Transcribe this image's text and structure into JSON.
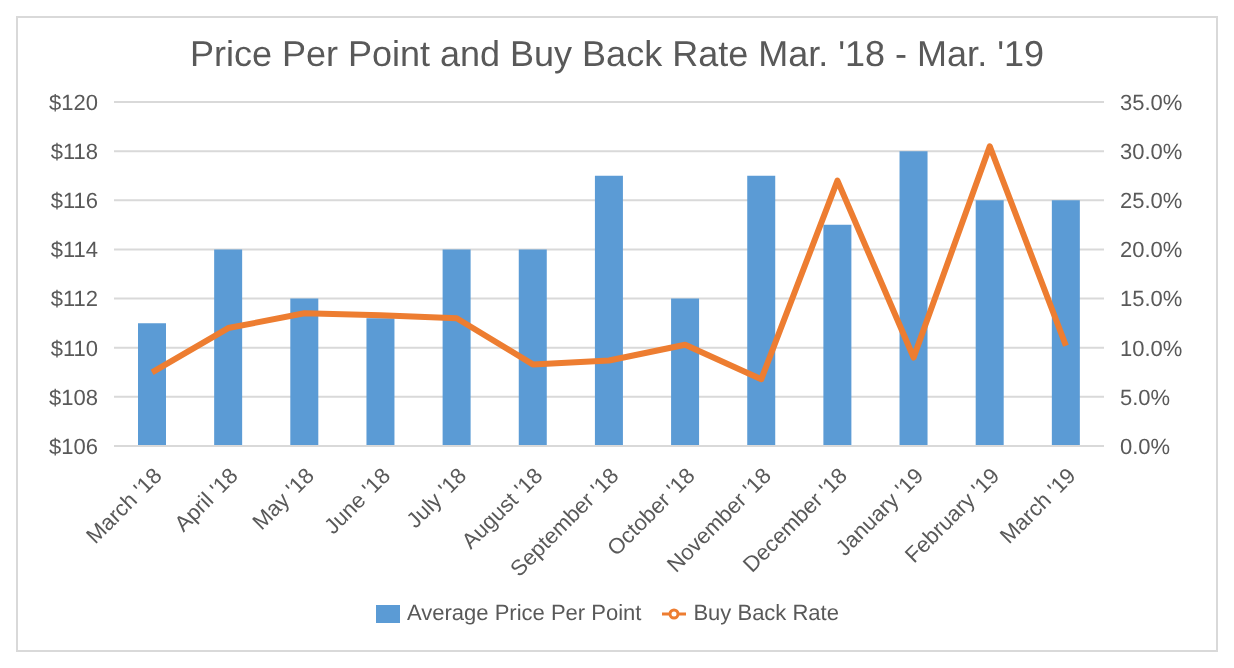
{
  "chart_data": {
    "type": "bar",
    "title": "Price Per Point and Buy Back Rate Mar. '18 - Mar. '19",
    "categories": [
      "March '18",
      "April '18",
      "May '18",
      "June '18",
      "July '18",
      "August '18",
      "September '18",
      "October '18",
      "November '18",
      "December '18",
      "January '19",
      "February '19",
      "March '19"
    ],
    "series": [
      {
        "name": "Average Price Per Point",
        "color": "#5b9bd5",
        "values": [
          111,
          114,
          112,
          111.2,
          114,
          114,
          117,
          112,
          117,
          115,
          118,
          116,
          116
        ]
      },
      {
        "name": "Buy Back Rate",
        "type": "line",
        "axis": "y2",
        "color": "#ed7d31",
        "values": [
          7.5,
          12.0,
          13.5,
          13.3,
          13.0,
          8.3,
          8.7,
          10.3,
          6.8,
          27.0,
          9.0,
          30.5,
          10.2
        ]
      }
    ],
    "ylim": [
      106,
      120
    ],
    "yticks": [
      {
        "value": 106,
        "label": "$106"
      },
      {
        "value": 108,
        "label": "$108"
      },
      {
        "value": 110,
        "label": "$110"
      },
      {
        "value": 112,
        "label": "$112"
      },
      {
        "value": 114,
        "label": "$114"
      },
      {
        "value": 116,
        "label": "$116"
      },
      {
        "value": 118,
        "label": "$118"
      },
      {
        "value": 120,
        "label": "$120"
      }
    ],
    "y2lim": [
      0,
      35
    ],
    "y2ticks": [
      {
        "value": 0,
        "label": "0.0%"
      },
      {
        "value": 5,
        "label": "5.0%"
      },
      {
        "value": 10,
        "label": "10.0%"
      },
      {
        "value": 15,
        "label": "15.0%"
      },
      {
        "value": 20,
        "label": "20.0%"
      },
      {
        "value": 25,
        "label": "25.0%"
      },
      {
        "value": 30,
        "label": "30.0%"
      },
      {
        "value": 35,
        "label": "35.0%"
      }
    ],
    "grid": "y",
    "legend": "bottom",
    "marker": "none",
    "line_style": "solid"
  }
}
